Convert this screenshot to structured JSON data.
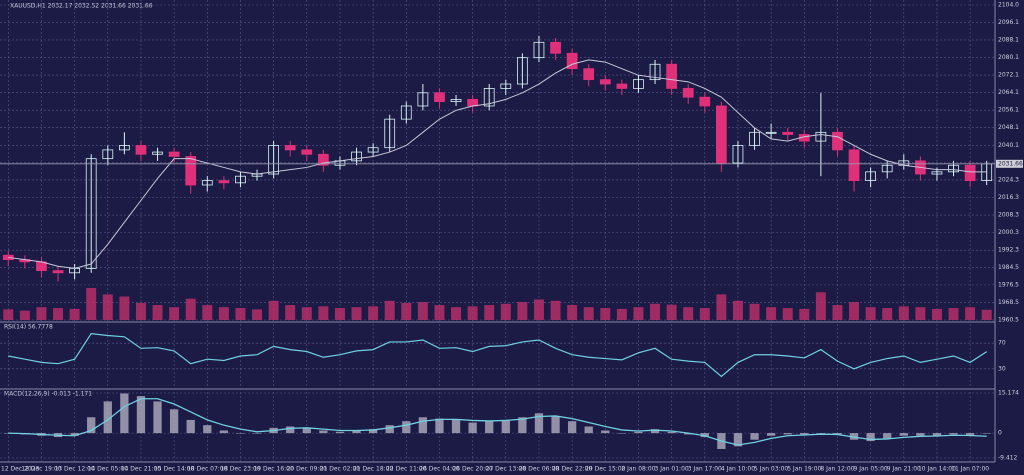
{
  "chart_data": [
    {
      "type": "candlestick",
      "title": "XAUUSD,H1  2032.17 2032.52 2031.66 2031.66",
      "categories": [
        "12 Dec 2023",
        null,
        "12 Dec 19:00",
        null,
        "13 Dec 12:00",
        null,
        "14 Dec 05:00",
        null,
        "14 Dec 21:00",
        null,
        "15 Dec 14:00",
        null,
        "18 Dec 07:00",
        null,
        "18 Dec 23:00",
        null,
        "19 Dec 16:00",
        null,
        "20 Dec 09:00",
        null,
        "21 Dec 02:00",
        null,
        "21 Dec 18:00",
        null,
        "22 Dec 11:00",
        null,
        "26 Dec 04:00",
        null,
        "26 Dec 20:00",
        null,
        "27 Dec 13:00",
        null,
        "28 Dec 06:00",
        null,
        "28 Dec 22:00",
        null,
        "29 Dec 15:00",
        null,
        "2 Jan 08:00",
        null,
        "3 Jan 01:00",
        null,
        "3 Jan 17:00",
        null,
        "4 Jan 10:00",
        null,
        "5 Jan 03:00",
        null,
        "5 Jan 19:00",
        null,
        "8 Jan 12:00",
        null,
        "9 Jan 05:00",
        null,
        "9 Jan 21:00",
        null,
        "10 Jan 14:00",
        null,
        "11 Jan 07:00",
        null
      ],
      "open": [
        1990,
        1988,
        1987,
        1983,
        1982,
        1984,
        2034,
        2038,
        2040,
        2036,
        2037,
        2035,
        2022,
        2024,
        2023,
        2026,
        2027,
        2040,
        2038,
        2036,
        2031,
        2033,
        2037,
        2039,
        2052,
        2058,
        2064,
        2060,
        2061,
        2058,
        2066,
        2068,
        2080,
        2087,
        2082,
        2075,
        2070,
        2068,
        2066,
        2070,
        2077,
        2066,
        2062,
        2058,
        2032,
        2040,
        2046,
        2046,
        2045,
        2042,
        2046,
        2038,
        2024,
        2028,
        2031,
        2033,
        2027,
        2028,
        2031,
        2024
      ],
      "high": [
        1992,
        1990,
        1989,
        1985,
        1986,
        2036,
        2040,
        2046,
        2042,
        2039,
        2039,
        2037,
        2026,
        2026,
        2028,
        2029,
        2042,
        2042,
        2040,
        2038,
        2035,
        2039,
        2041,
        2054,
        2060,
        2068,
        2066,
        2063,
        2063,
        2068,
        2070,
        2082,
        2090,
        2089,
        2084,
        2077,
        2072,
        2070,
        2072,
        2079,
        2079,
        2068,
        2064,
        2060,
        2042,
        2048,
        2050,
        2048,
        2047,
        2064,
        2048,
        2040,
        2030,
        2033,
        2036,
        2035,
        2030,
        2033,
        2033,
        2033
      ],
      "low": [
        1985,
        1984,
        1980,
        1978,
        1979,
        1982,
        2031,
        2036,
        2033,
        2033,
        2032,
        2018,
        2019,
        2020,
        2021,
        2024,
        2025,
        2035,
        2033,
        2028,
        2029,
        2031,
        2035,
        2037,
        2050,
        2056,
        2057,
        2058,
        2055,
        2056,
        2063,
        2066,
        2078,
        2079,
        2072,
        2067,
        2065,
        2063,
        2064,
        2068,
        2063,
        2059,
        2055,
        2028,
        2030,
        2038,
        2043,
        2042,
        2039,
        2026,
        2035,
        2019,
        2021,
        2025,
        2029,
        2024,
        2024,
        2026,
        2021,
        2022
      ],
      "close": [
        1988,
        1987,
        1983,
        1982,
        1984,
        2034,
        2038,
        2040,
        2036,
        2037,
        2035,
        2022,
        2024,
        2023,
        2026,
        2027,
        2040,
        2038,
        2036,
        2031,
        2033,
        2037,
        2039,
        2052,
        2058,
        2064,
        2060,
        2061,
        2058,
        2066,
        2068,
        2080,
        2087,
        2082,
        2075,
        2070,
        2068,
        2066,
        2070,
        2077,
        2066,
        2062,
        2058,
        2032,
        2040,
        2046,
        2046,
        2045,
        2042,
        2046,
        2038,
        2024,
        2028,
        2031,
        2033,
        2027,
        2028,
        2031,
        2024,
        2031.66
      ],
      "ma": [
        1989,
        1988,
        1987,
        1985,
        1984,
        1986,
        1995,
        2005,
        2015,
        2025,
        2034,
        2034,
        2032,
        2030,
        2028,
        2027,
        2028,
        2029,
        2030,
        2032,
        2033,
        2034,
        2035,
        2037,
        2040,
        2046,
        2052,
        2056,
        2058,
        2059,
        2061,
        2064,
        2068,
        2073,
        2077,
        2079,
        2078,
        2075,
        2072,
        2071,
        2070,
        2069,
        2066,
        2062,
        2055,
        2048,
        2043,
        2042,
        2044,
        2045,
        2044,
        2040,
        2036,
        2033,
        2031,
        2030,
        2029,
        2029,
        2028,
        2028
      ],
      "volume": [
        2500,
        2200,
        3000,
        2800,
        2600,
        7500,
        6000,
        5500,
        4000,
        3500,
        3000,
        5000,
        3500,
        3000,
        2800,
        2500,
        4500,
        3500,
        3000,
        3200,
        2800,
        3000,
        3200,
        4500,
        4000,
        4200,
        3500,
        3000,
        3200,
        3500,
        3800,
        4200,
        4800,
        4500,
        3500,
        3000,
        2800,
        2600,
        3000,
        3800,
        3600,
        3000,
        2800,
        6000,
        4500,
        3800,
        3000,
        2800,
        2600,
        6500,
        3500,
        4200,
        3000,
        2800,
        3200,
        3000,
        2600,
        2800,
        3000,
        2400
      ],
      "last_price": 2031.66,
      "ylim": [
        1960.5,
        2104.0
      ],
      "yticks": [
        {
          "value": 2104.0,
          "label": "2104.0"
        },
        {
          "value": 2096.1,
          "label": "2096.1"
        },
        {
          "value": 2088.1,
          "label": "2088.1"
        },
        {
          "value": 2080.1,
          "label": "2080.1"
        },
        {
          "value": 2072.1,
          "label": "2072.1"
        },
        {
          "value": 2064.1,
          "label": "2064.1"
        },
        {
          "value": 2056.1,
          "label": "2056.1"
        },
        {
          "value": 2048.1,
          "label": "2048.1"
        },
        {
          "value": 2040.1,
          "label": "2040.1"
        },
        {
          "value": 2032.1,
          "label": "2032.1"
        },
        {
          "value": 2024.3,
          "label": "2024.3"
        },
        {
          "value": 2016.3,
          "label": "2016.3"
        },
        {
          "value": 2008.3,
          "label": "2008.3"
        },
        {
          "value": 2000.3,
          "label": "2000.3"
        },
        {
          "value": 1992.3,
          "label": "1992.3"
        },
        {
          "value": 1984.5,
          "label": "1984.5"
        },
        {
          "value": 1976.5,
          "label": "1976.5"
        },
        {
          "value": 1968.5,
          "label": "1968.5"
        },
        {
          "value": 1960.5,
          "label": "1960.5"
        }
      ],
      "grid": true,
      "up_color": "#d8f4f4",
      "down_color": "#e0307a",
      "ma_color": "#c8c8d8",
      "volume_color": "#c0306a"
    },
    {
      "type": "line",
      "title": "RSI(14) 56.7778",
      "values": [
        50,
        45,
        40,
        38,
        45,
        85,
        82,
        80,
        62,
        63,
        58,
        38,
        45,
        43,
        50,
        52,
        65,
        60,
        57,
        48,
        52,
        58,
        60,
        72,
        72,
        75,
        62,
        63,
        57,
        65,
        66,
        72,
        75,
        62,
        52,
        48,
        46,
        44,
        55,
        62,
        45,
        42,
        40,
        18,
        40,
        52,
        52,
        50,
        47,
        60,
        42,
        30,
        40,
        46,
        50,
        40,
        45,
        50,
        40,
        56.7778
      ],
      "ylim": [
        0,
        100
      ],
      "yticks": [
        70,
        30
      ],
      "color": "#6fd0e0"
    },
    {
      "type": "macd",
      "title": "MACD(12,26,9) -0.013 -1.171",
      "histogram": [
        0,
        -0.5,
        -1,
        -1.5,
        -1,
        6,
        12,
        15,
        14,
        12,
        9,
        5,
        3,
        1,
        0,
        0,
        2,
        2.5,
        2,
        1,
        0.5,
        1,
        1.5,
        3,
        4.5,
        6,
        5.5,
        5,
        4,
        4.5,
        5,
        6,
        7.5,
        6.5,
        4.5,
        2.5,
        1,
        0,
        0.5,
        1.5,
        0.5,
        -0.5,
        -1.5,
        -6,
        -5,
        -2.5,
        -1,
        -0.5,
        -0.5,
        0,
        -0.5,
        -2.5,
        -3,
        -2,
        -1,
        -1,
        -1,
        -0.5,
        -1,
        -0.013
      ],
      "signal": [
        0,
        -0.2,
        -0.5,
        -0.8,
        -1,
        1,
        5,
        10,
        13,
        13,
        11,
        8,
        5,
        3,
        1.5,
        0.5,
        1,
        1.8,
        2,
        1.5,
        1,
        1,
        1.2,
        2,
        3,
        4.5,
        5.2,
        5.2,
        4.8,
        4.6,
        4.8,
        5.3,
        6.3,
        6.5,
        5.5,
        4,
        2.5,
        1.2,
        0.8,
        1.1,
        0.8,
        0,
        -1,
        -3,
        -4.5,
        -3.5,
        -2,
        -1,
        -0.7,
        -0.4,
        -0.5,
        -1.5,
        -2.4,
        -2.2,
        -1.6,
        -1.2,
        -1.1,
        -0.8,
        -0.9,
        -1.171
      ],
      "ylim": [
        -9.412,
        15.174
      ],
      "yticks": [
        15.174,
        0,
        -9.412
      ],
      "histogram_color": "#b8b8c8",
      "signal_color": "#6fd0e0"
    }
  ]
}
